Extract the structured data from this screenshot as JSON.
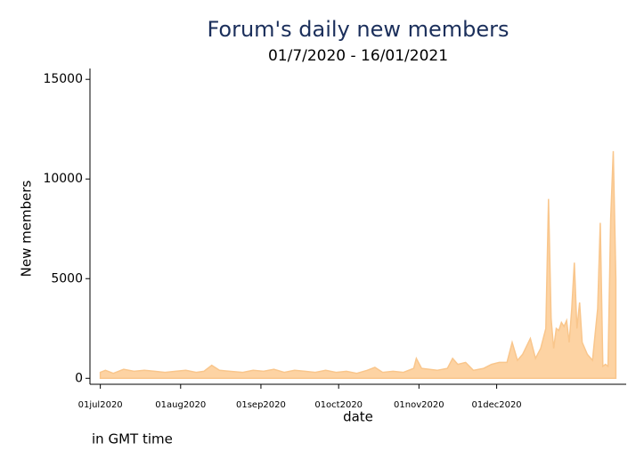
{
  "chart_data": {
    "type": "area",
    "title": "Forum's daily new members",
    "subtitle": "01/7/2020 - 16/01/2021",
    "x_label": "date",
    "y_label": "New members",
    "note": "in GMT time",
    "color": "#fdd3a3",
    "line_color": "#f9c68c",
    "xlim": [
      "2020-06-27",
      "2021-01-20"
    ],
    "xticks": [
      {
        "value": "2020-07-01",
        "label": "01jul2020"
      },
      {
        "value": "2020-08-01",
        "label": "01aug2020"
      },
      {
        "value": "2020-09-01",
        "label": "01sep2020"
      },
      {
        "value": "2020-10-01",
        "label": "01oct2020"
      },
      {
        "value": "2020-11-01",
        "label": "01nov2020"
      },
      {
        "value": "2020-12-01",
        "label": "01dec2020"
      }
    ],
    "ylim": [
      -300,
      15500
    ],
    "yticks": [
      0,
      5000,
      10000,
      15000
    ],
    "x": [
      "2020-07-01",
      "2020-07-03",
      "2020-07-06",
      "2020-07-10",
      "2020-07-14",
      "2020-07-18",
      "2020-07-22",
      "2020-07-26",
      "2020-07-30",
      "2020-08-03",
      "2020-08-07",
      "2020-08-10",
      "2020-08-13",
      "2020-08-16",
      "2020-08-20",
      "2020-08-25",
      "2020-08-29",
      "2020-09-02",
      "2020-09-06",
      "2020-09-10",
      "2020-09-14",
      "2020-09-18",
      "2020-09-22",
      "2020-09-26",
      "2020-09-30",
      "2020-10-04",
      "2020-10-08",
      "2020-10-12",
      "2020-10-15",
      "2020-10-18",
      "2020-10-22",
      "2020-10-26",
      "2020-10-30",
      "2020-10-31",
      "2020-11-02",
      "2020-11-08",
      "2020-11-12",
      "2020-11-14",
      "2020-11-16",
      "2020-11-19",
      "2020-11-22",
      "2020-11-26",
      "2020-11-29",
      "2020-12-02",
      "2020-12-05",
      "2020-12-07",
      "2020-12-09",
      "2020-12-11",
      "2020-12-14",
      "2020-12-16",
      "2020-12-18",
      "2020-12-20",
      "2020-12-21",
      "2020-12-22",
      "2020-12-23",
      "2020-12-24",
      "2020-12-25",
      "2020-12-26",
      "2020-12-27",
      "2020-12-28",
      "2020-12-29",
      "2020-12-30",
      "2020-12-31",
      "2021-01-01",
      "2021-01-02",
      "2021-01-03",
      "2021-01-05",
      "2021-01-07",
      "2021-01-09",
      "2021-01-10",
      "2021-01-11",
      "2021-01-12",
      "2021-01-13",
      "2021-01-14",
      "2021-01-15",
      "2021-01-16"
    ],
    "values": [
      300,
      400,
      250,
      450,
      350,
      400,
      350,
      300,
      350,
      400,
      300,
      350,
      650,
      400,
      350,
      300,
      400,
      350,
      450,
      300,
      400,
      350,
      300,
      400,
      300,
      350,
      250,
      400,
      550,
      300,
      350,
      300,
      500,
      1000,
      500,
      400,
      500,
      1000,
      700,
      800,
      400,
      500,
      700,
      800,
      800,
      1800,
      900,
      1200,
      2000,
      1000,
      1500,
      2500,
      9000,
      3000,
      1500,
      2500,
      2400,
      2800,
      2600,
      2900,
      1800,
      3500,
      5800,
      2500,
      3800,
      1800,
      1200,
      900,
      3500,
      7800,
      600,
      700,
      600,
      8000,
      11400,
      5000
    ]
  }
}
